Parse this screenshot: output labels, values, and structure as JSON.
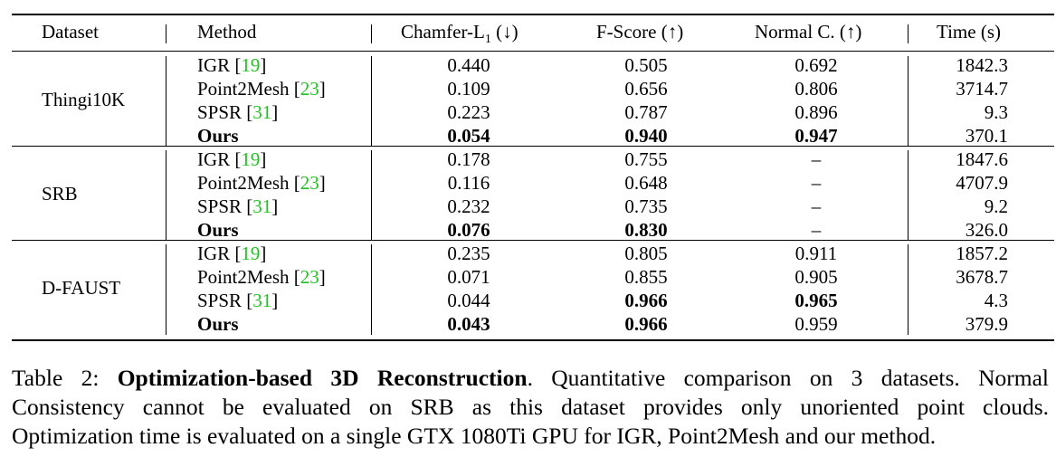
{
  "table": {
    "columns": [
      "Dataset",
      "Method",
      "Chamfer-L",
      "1",
      " (↓)",
      "F-Score (↑)",
      "Normal C. (↑)",
      "Time (s)"
    ],
    "groups": [
      {
        "dataset": "Thingi10K",
        "rows": [
          {
            "method": "IGR",
            "cite": "19",
            "chamfer": "0.440",
            "fscore": "0.505",
            "normal": "0.692",
            "time": "1842.3"
          },
          {
            "method": "Point2Mesh",
            "cite": "23",
            "chamfer": "0.109",
            "fscore": "0.656",
            "normal": "0.806",
            "time": "3714.7"
          },
          {
            "method": "SPSR",
            "cite": "31",
            "chamfer": "0.223",
            "fscore": "0.787",
            "normal": "0.896",
            "time": "9.3"
          },
          {
            "method": "Ours",
            "cite": "",
            "chamfer": "0.054",
            "fscore": "0.940",
            "normal": "0.947",
            "time": "370.1"
          }
        ]
      },
      {
        "dataset": "SRB",
        "rows": [
          {
            "method": "IGR",
            "cite": "19",
            "chamfer": "0.178",
            "fscore": "0.755",
            "normal": "–",
            "time": "1847.6"
          },
          {
            "method": "Point2Mesh",
            "cite": "23",
            "chamfer": "0.116",
            "fscore": "0.648",
            "normal": "–",
            "time": "4707.9"
          },
          {
            "method": "SPSR",
            "cite": "31",
            "chamfer": "0.232",
            "fscore": "0.735",
            "normal": "–",
            "time": "9.2"
          },
          {
            "method": "Ours",
            "cite": "",
            "chamfer": "0.076",
            "fscore": "0.830",
            "normal": "–",
            "time": "326.0"
          }
        ]
      },
      {
        "dataset": "D-FAUST",
        "rows": [
          {
            "method": "IGR",
            "cite": "19",
            "chamfer": "0.235",
            "fscore": "0.805",
            "normal": "0.911",
            "time": "1857.2"
          },
          {
            "method": "Point2Mesh",
            "cite": "23",
            "chamfer": "0.071",
            "fscore": "0.855",
            "normal": "0.905",
            "time": "3678.7"
          },
          {
            "method": "SPSR",
            "cite": "31",
            "chamfer": "0.044",
            "fscore": "0.966",
            "normal": "0.965",
            "time": "4.3"
          },
          {
            "method": "Ours",
            "cite": "",
            "chamfer": "0.043",
            "fscore": "0.966",
            "normal": "0.959",
            "time": "379.9"
          }
        ]
      }
    ],
    "bold_cells": [
      [
        0,
        3,
        "method"
      ],
      [
        0,
        3,
        "chamfer"
      ],
      [
        0,
        3,
        "fscore"
      ],
      [
        0,
        3,
        "normal"
      ],
      [
        1,
        3,
        "method"
      ],
      [
        1,
        3,
        "chamfer"
      ],
      [
        1,
        3,
        "fscore"
      ],
      [
        2,
        3,
        "method"
      ],
      [
        2,
        3,
        "chamfer"
      ],
      [
        2,
        2,
        "fscore"
      ],
      [
        2,
        3,
        "fscore"
      ],
      [
        2,
        2,
        "normal"
      ]
    ]
  },
  "caption": {
    "label": "Table 2: ",
    "title": "Optimization-based 3D Reconstruction",
    "line1_rest": ". Quantitative comparison on 3 datasets. Normal",
    "line2": "Consistency cannot be evaluated on SRB as this dataset provides only unoriented point clouds.",
    "line3": "Optimization time is evaluated on a single GTX 1080Ti GPU for IGR, Point2Mesh and our method."
  }
}
